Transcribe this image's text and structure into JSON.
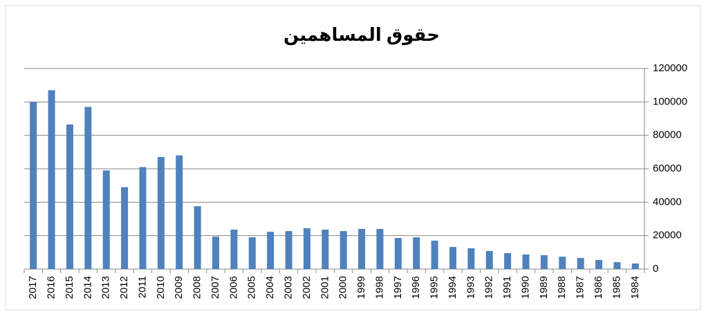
{
  "chart_data": {
    "type": "bar",
    "title": "حقوق المساهمين",
    "categories": [
      "2017",
      "2016",
      "2015",
      "2014",
      "2013",
      "2012",
      "2011",
      "2010",
      "2009",
      "2008",
      "2007",
      "2006",
      "2005",
      "2004",
      "2003",
      "2002",
      "2001",
      "2000",
      "1999",
      "1998",
      "1997",
      "1996",
      "1995",
      "1994",
      "1993",
      "1992",
      "1991",
      "1990",
      "1989",
      "1988",
      "1987",
      "1986",
      "1985",
      "1984"
    ],
    "values": [
      100000,
      107000,
      86500,
      97000,
      59000,
      49000,
      61000,
      67000,
      68000,
      37600,
      19400,
      23600,
      19000,
      22300,
      22700,
      24400,
      23600,
      22700,
      24000,
      24000,
      18600,
      19000,
      17000,
      13200,
      12400,
      10800,
      9500,
      8700,
      8300,
      7400,
      6600,
      5400,
      4100,
      3300
    ],
    "color": "#4f81bd",
    "ylim": [
      0,
      120000
    ],
    "yticks": [
      0,
      20000,
      40000,
      60000,
      80000,
      100000,
      120000
    ],
    "y_axis_side": "right",
    "grid": true
  }
}
